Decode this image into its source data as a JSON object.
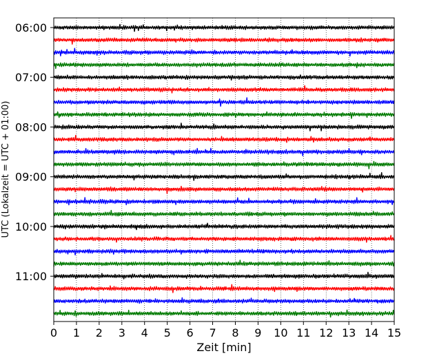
{
  "chart_data": {
    "type": "line",
    "title": "",
    "xlabel": "Zeit  [min]",
    "ylabel": "UTC (Lokalzeit = UTC + 01:00)",
    "xlim": [
      0,
      15
    ],
    "x_ticks": [
      0,
      1,
      2,
      3,
      4,
      5,
      6,
      7,
      8,
      9,
      10,
      11,
      12,
      13,
      14,
      15
    ],
    "x_tick_labels": [
      "0",
      "1",
      "2",
      "3",
      "4",
      "5",
      "6",
      "7",
      "8",
      "9",
      "10",
      "11",
      "12",
      "13",
      "14",
      "15"
    ],
    "y_tick_labels": [
      "06:00",
      "07:00",
      "08:00",
      "09:00",
      "10:00",
      "11:00"
    ],
    "grid": "vertical dotted",
    "trace_interval_min": 15,
    "start_time": "06:00",
    "trace_color_cycle": [
      "#000000",
      "#ff0000",
      "#0000ff",
      "#007a00"
    ],
    "series": [
      {
        "start": "06:00",
        "color": "#000000"
      },
      {
        "start": "06:15",
        "color": "#ff0000"
      },
      {
        "start": "06:30",
        "color": "#0000ff"
      },
      {
        "start": "06:45",
        "color": "#007a00"
      },
      {
        "start": "07:00",
        "color": "#000000"
      },
      {
        "start": "07:15",
        "color": "#ff0000"
      },
      {
        "start": "07:30",
        "color": "#0000ff"
      },
      {
        "start": "07:45",
        "color": "#007a00"
      },
      {
        "start": "08:00",
        "color": "#000000"
      },
      {
        "start": "08:15",
        "color": "#ff0000"
      },
      {
        "start": "08:30",
        "color": "#0000ff"
      },
      {
        "start": "08:45",
        "color": "#007a00"
      },
      {
        "start": "09:00",
        "color": "#000000"
      },
      {
        "start": "09:15",
        "color": "#ff0000"
      },
      {
        "start": "09:30",
        "color": "#0000ff"
      },
      {
        "start": "09:45",
        "color": "#007a00"
      },
      {
        "start": "10:00",
        "color": "#000000"
      },
      {
        "start": "10:15",
        "color": "#ff0000"
      },
      {
        "start": "10:30",
        "color": "#0000ff"
      },
      {
        "start": "10:45",
        "color": "#007a00"
      },
      {
        "start": "11:00",
        "color": "#000000"
      },
      {
        "start": "11:15",
        "color": "#ff0000"
      },
      {
        "start": "11:30",
        "color": "#0000ff"
      },
      {
        "start": "11:45",
        "color": "#007a00"
      }
    ]
  }
}
